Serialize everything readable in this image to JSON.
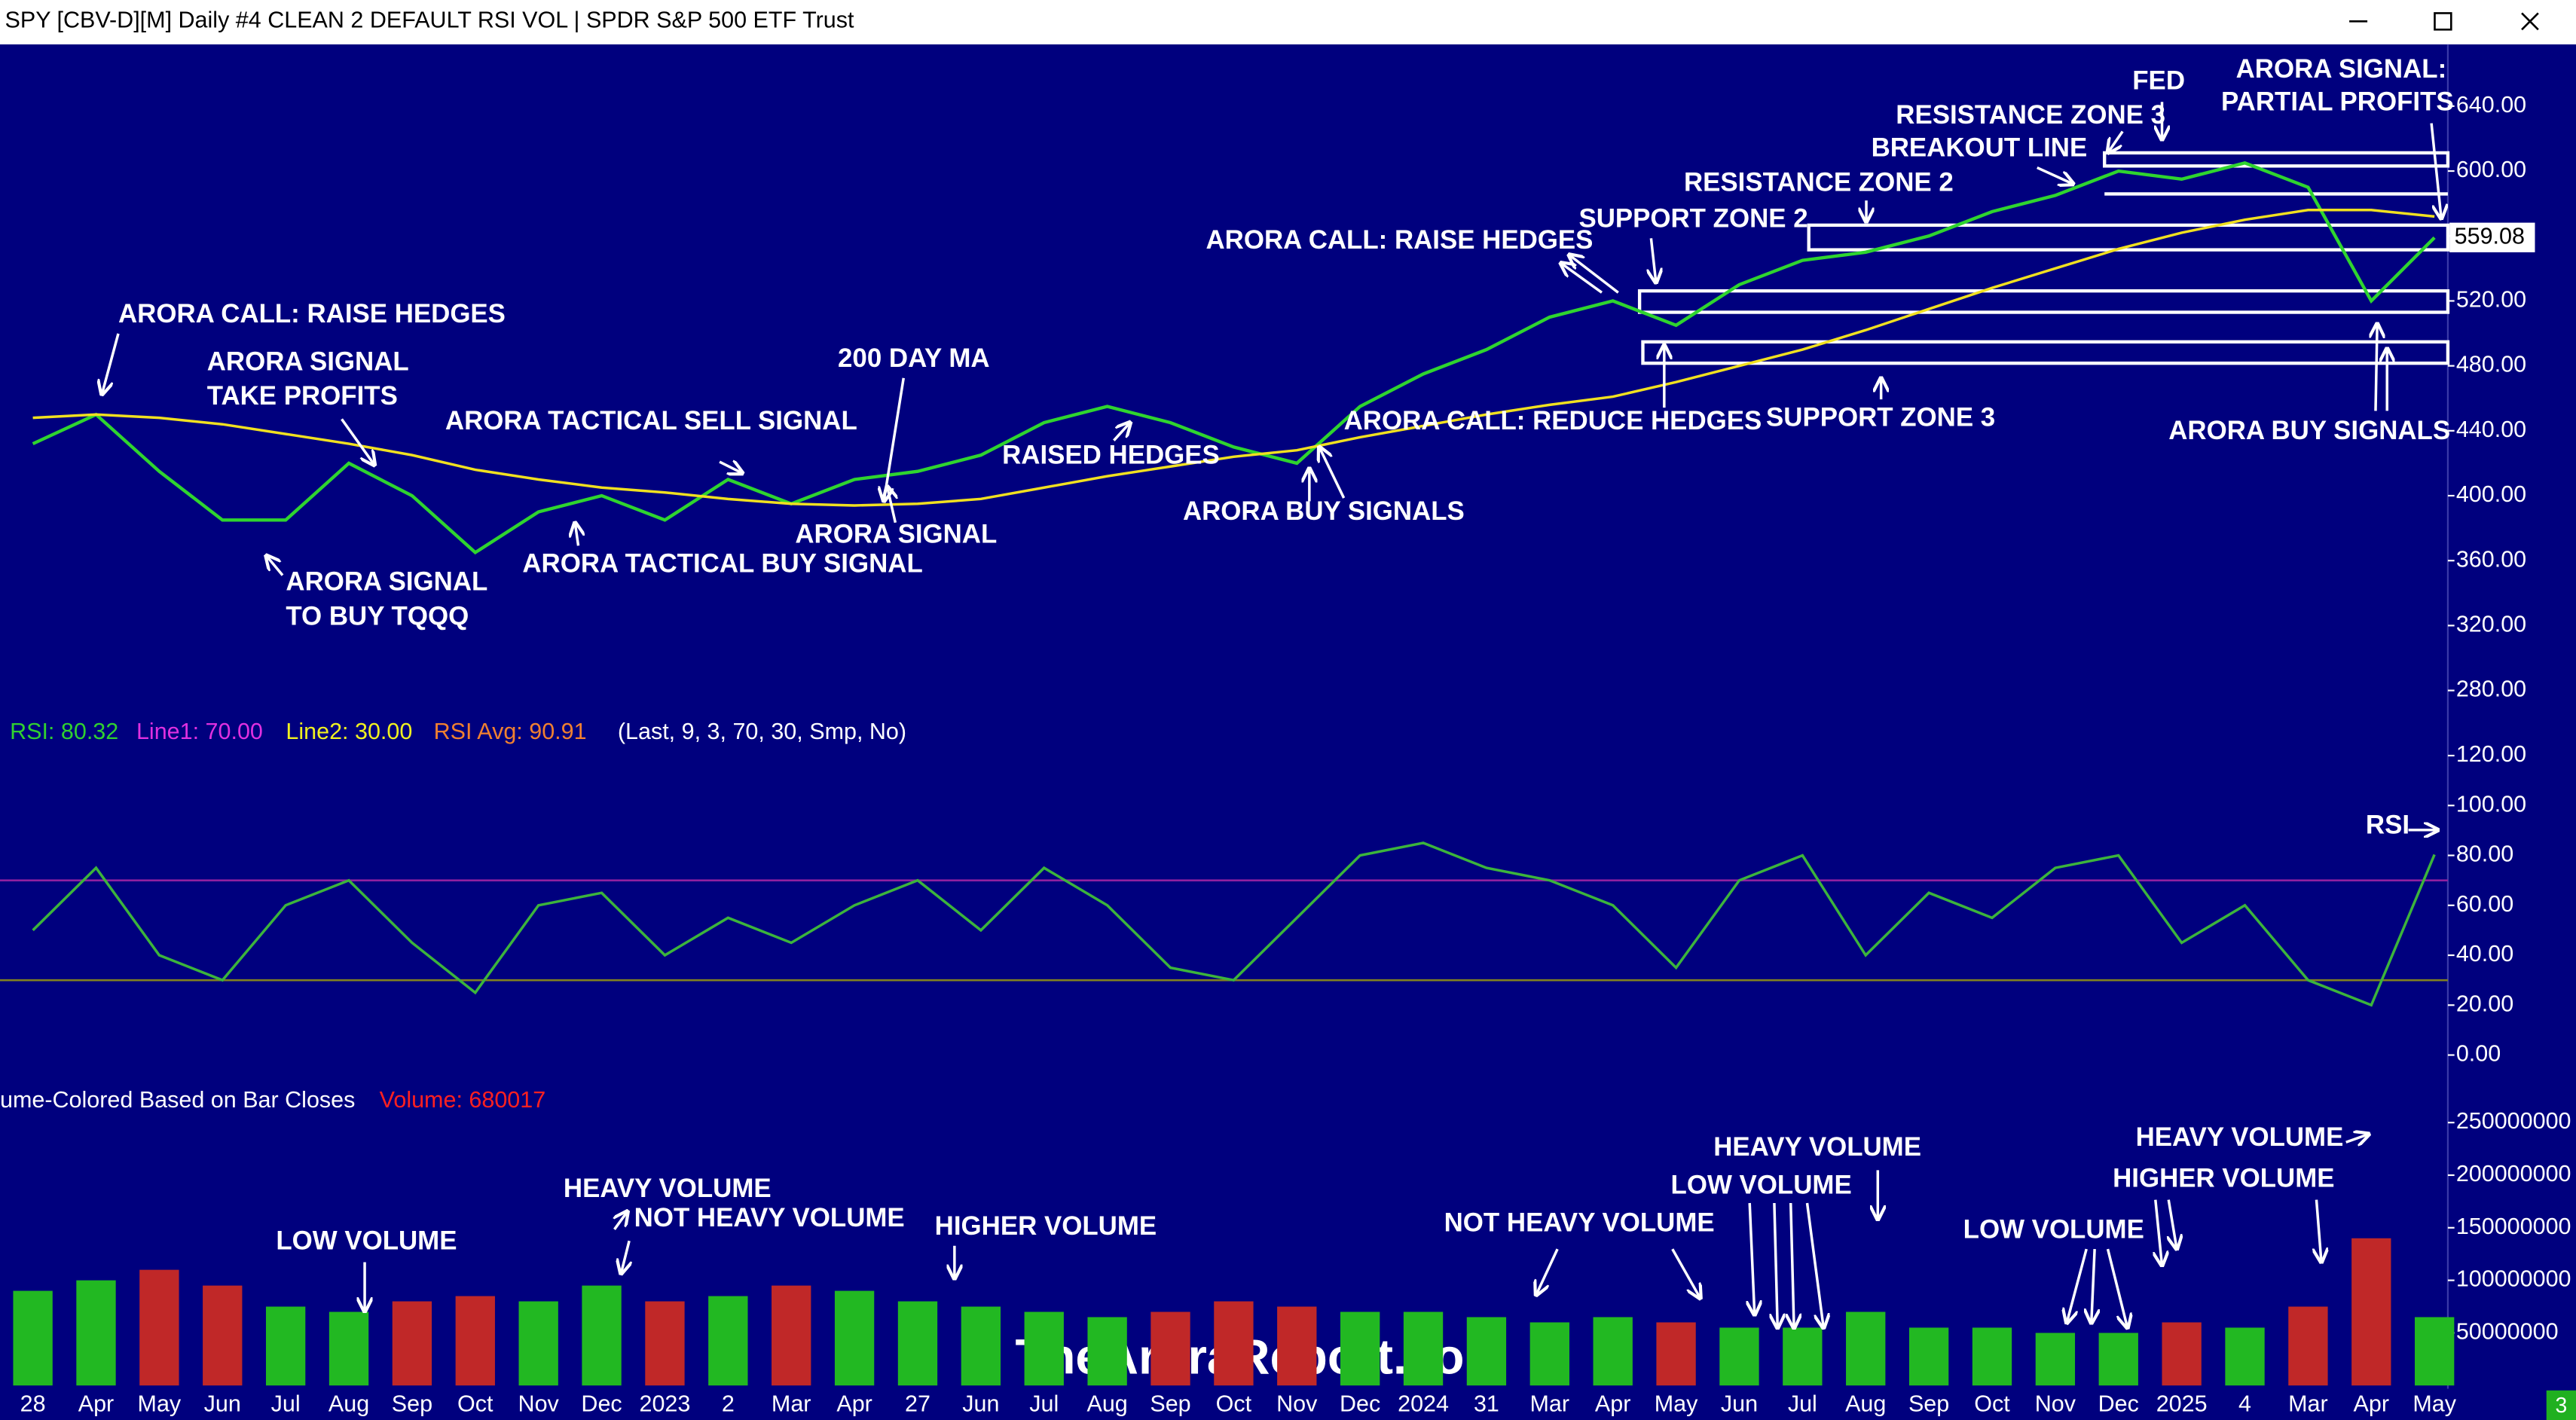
{
  "window": {
    "title": "SPY [CBV-D][M]  Daily #4 CLEAN  2 DEFAULT RSI VOL | SPDR S&P 500 ETF Trust"
  },
  "x_axis": {
    "categories": [
      "28",
      "Apr",
      "May",
      "Jun",
      "Jul",
      "Aug",
      "Sep",
      "Oct",
      "Nov",
      "Dec",
      "2023",
      "2",
      "Mar",
      "Apr",
      "27",
      "Jun",
      "Jul",
      "Aug",
      "Sep",
      "Oct",
      "Nov",
      "Dec",
      "2024",
      "31",
      "Mar",
      "Apr",
      "May",
      "Jun",
      "Jul",
      "Aug",
      "Sep",
      "Oct",
      "Nov",
      "Dec",
      "2025",
      "4",
      "Mar",
      "Apr",
      "May"
    ]
  },
  "chart_data": [
    {
      "type": "line",
      "last_value": 559.08,
      "ylim": [
        270,
        675
      ],
      "yticks": [
        {
          "value": 280,
          "label": "280.00"
        },
        {
          "value": 320,
          "label": "320.00"
        },
        {
          "value": 360,
          "label": "360.00"
        },
        {
          "value": 400,
          "label": "400.00"
        },
        {
          "value": 440,
          "label": "440.00"
        },
        {
          "value": 480,
          "label": "480.00"
        },
        {
          "value": 520,
          "label": "520.00"
        },
        {
          "value": 560,
          "label": "560.00"
        },
        {
          "value": 600,
          "label": "600.00"
        },
        {
          "value": 640,
          "label": "640.00"
        }
      ],
      "series": [
        {
          "color": "#2fd42f",
          "values": [
            432,
            450,
            415,
            385,
            385,
            420,
            400,
            365,
            390,
            400,
            385,
            410,
            395,
            410,
            415,
            425,
            445,
            455,
            445,
            430,
            420,
            455,
            475,
            490,
            510,
            520,
            505,
            530,
            545,
            550,
            560,
            575,
            585,
            600,
            595,
            605,
            590,
            520,
            559
          ]
        },
        {
          "color": "#f0e020",
          "values": [
            448,
            450,
            448,
            444,
            438,
            432,
            425,
            416,
            410,
            405,
            402,
            398,
            395,
            394,
            395,
            398,
            405,
            412,
            418,
            424,
            428,
            436,
            443,
            450,
            456,
            461,
            470,
            480,
            490,
            502,
            515,
            528,
            540,
            552,
            562,
            570,
            576,
            576,
            572
          ]
        }
      ]
    },
    {
      "type": "line",
      "ylim": [
        -8.6,
        133
      ],
      "yticks": [
        {
          "value": 0,
          "label": "0.00"
        },
        {
          "value": 20,
          "label": "20.00"
        },
        {
          "value": 40,
          "label": "40.00"
        },
        {
          "value": 60,
          "label": "60.00"
        },
        {
          "value": 80,
          "label": "80.00"
        },
        {
          "value": 100,
          "label": "100.00"
        },
        {
          "value": 120,
          "label": "120.00"
        }
      ],
      "legend": [
        {
          "text": "RSI: 80.32",
          "color": "#30d030"
        },
        {
          "text": "Line1: 70.00",
          "color": "#e030e0"
        },
        {
          "text": "Line2: 30.00",
          "color": "#f0f020"
        },
        {
          "text": "RSI Avg: 90.91",
          "color": "#f08030"
        },
        {
          "text": "(Last, 9, 3, 70, 30, Smp, No)",
          "color": "#ffffff"
        }
      ],
      "reference_lines": [
        {
          "value": 70,
          "color": "#9020a0"
        },
        {
          "value": 30,
          "color": "#808020"
        }
      ],
      "series": [
        {
          "color": "#3cb43c",
          "values": [
            50,
            75,
            40,
            30,
            60,
            70,
            45,
            25,
            60,
            65,
            40,
            55,
            45,
            60,
            70,
            50,
            75,
            60,
            35,
            30,
            55,
            80,
            85,
            75,
            70,
            60,
            35,
            70,
            80,
            40,
            65,
            55,
            75,
            80,
            45,
            60,
            30,
            20,
            80.32
          ]
        }
      ]
    },
    {
      "type": "bar",
      "ylim": [
        0,
        286000000
      ],
      "yticks": [
        50000000,
        100000000,
        150000000,
        200000000,
        250000000
      ],
      "up_color": "#22b822",
      "down_color": "#c02828",
      "legend": [
        {
          "text": "ume-Colored Based on Bar Closes",
          "color": "#ffffff"
        },
        {
          "text": "Volume: 680017",
          "color": "#ff2020"
        }
      ],
      "values": [
        90000000,
        100000000,
        110000000,
        95000000,
        75000000,
        70000000,
        80000000,
        85000000,
        80000000,
        95000000,
        80000000,
        85000000,
        95000000,
        90000000,
        80000000,
        75000000,
        70000000,
        65000000,
        70000000,
        80000000,
        75000000,
        70000000,
        70000000,
        65000000,
        60000000,
        65000000,
        60000000,
        55000000,
        55000000,
        70000000,
        55000000,
        55000000,
        50000000,
        50000000,
        60000000,
        55000000,
        75000000,
        140000000,
        65000000
      ]
    }
  ],
  "annotations": [
    "ARORA CALL: RAISE HEDGES",
    "ARORA SIGNAL",
    "TAKE PROFITS",
    "ARORA TACTICAL SELL SIGNAL",
    "200 DAY MA",
    "RAISED HEDGES",
    "ARORA SIGNAL",
    "ARORA TACTICAL BUY SIGNAL",
    "ARORA SIGNAL",
    "TO BUY TQQQ",
    "ARORA BUY SIGNALS",
    "ARORA CALL: REDUCE HEDGES",
    "ARORA CALL: RAISE HEDGES",
    "SUPPORT ZONE 2",
    "RESISTANCE ZONE 2",
    "BREAKOUT LINE",
    "RESISTANCE ZONE 3",
    "FED",
    "ARORA SIGNAL:",
    "PARTIAL PROFITS",
    "SUPPORT ZONE 3",
    "ARORA BUY SIGNALS",
    "RSI",
    "LOW VOLUME",
    "HEAVY VOLUME",
    "NOT HEAVY VOLUME",
    "HIGHER VOLUME",
    "NOT HEAVY VOLUME",
    "HEAVY VOLUME",
    "LOW VOLUME",
    "LOW VOLUME",
    "HIGHER VOLUME",
    "HEAVY VOLUME"
  ],
  "watermark": "TheAroraReport.com",
  "corner_badge": "3"
}
